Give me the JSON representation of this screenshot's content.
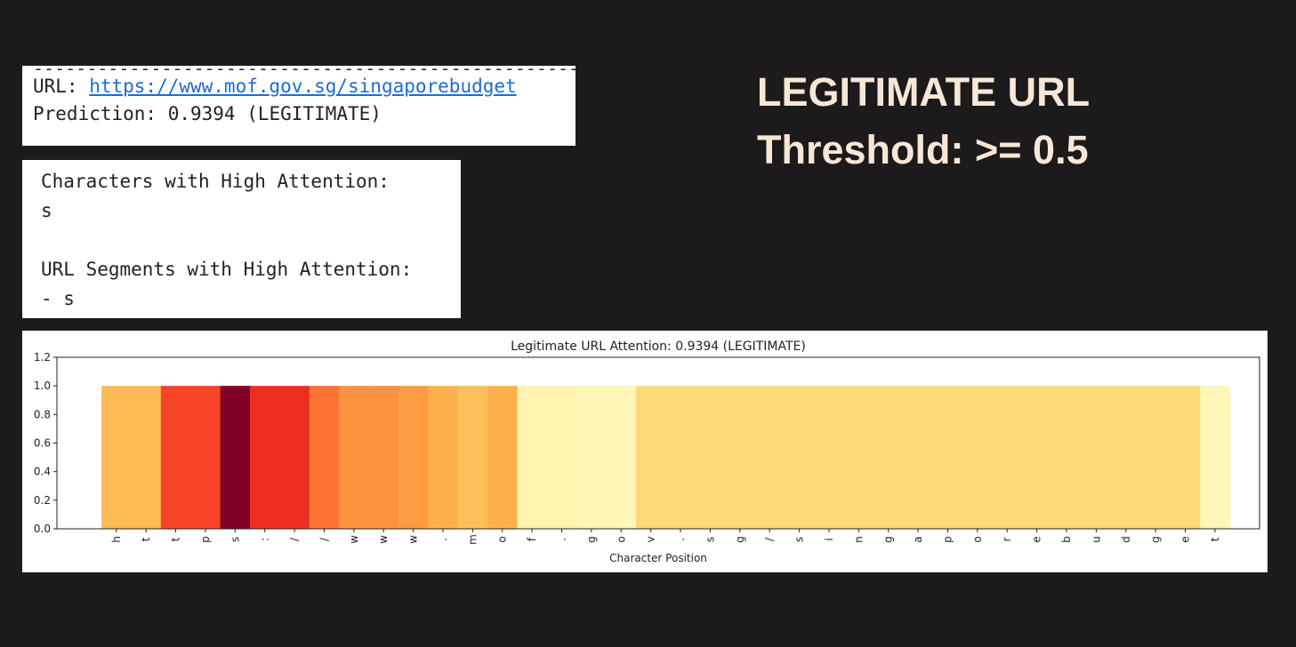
{
  "url_panel": {
    "dashes": "------------------------------------------------------------",
    "url_label": "URL: ",
    "url_link": "https://www.mof.gov.sg/singaporebudget",
    "prediction": "Prediction: 0.9394 (LEGITIMATE)"
  },
  "attention_panel": {
    "chars_heading": "Characters with High Attention:",
    "chars_value": "s",
    "segments_heading": "URL Segments with High Attention:",
    "segments_value": "- s"
  },
  "headline": {
    "line1": "LEGITIMATE URL",
    "line2": "Threshold: >= 0.5"
  },
  "colors": {
    "background": "#1c1a1b",
    "headline": "#f7e7d6",
    "link": "#1a6dd6"
  },
  "chart_data": {
    "type": "heatmap",
    "title": "Legitimate URL Attention: 0.9394 (LEGITIMATE)",
    "xlabel": "Character Position",
    "ylabel": "",
    "ylim": [
      0,
      1.2
    ],
    "yticks": [
      "0.0",
      "0.2",
      "0.4",
      "0.6",
      "0.8",
      "1.0",
      "1.2"
    ],
    "colormap": "YlOrRd",
    "grid": false,
    "categories": [
      "h",
      "t",
      "t",
      "p",
      "s",
      ":",
      "/",
      "/",
      "w",
      "w",
      "w",
      ".",
      "m",
      "o",
      "f",
      ".",
      "g",
      "o",
      "v",
      ".",
      "s",
      "g",
      "/",
      "s",
      "i",
      "n",
      "g",
      "a",
      "p",
      "o",
      "r",
      "e",
      "b",
      "u",
      "d",
      "g",
      "e",
      "t"
    ],
    "values": [
      1,
      1,
      1,
      1,
      1,
      1,
      1,
      1,
      1,
      1,
      1,
      1,
      1,
      1,
      1,
      1,
      1,
      1,
      1,
      1,
      1,
      1,
      1,
      1,
      1,
      1,
      1,
      1,
      1,
      1,
      1,
      1,
      1,
      1,
      1,
      1,
      1,
      1
    ],
    "attention": [
      0.35,
      0.35,
      0.65,
      0.65,
      1.0,
      0.7,
      0.7,
      0.55,
      0.48,
      0.48,
      0.45,
      0.38,
      0.33,
      0.38,
      0.08,
      0.08,
      0.06,
      0.06,
      0.25,
      0.25,
      0.25,
      0.25,
      0.25,
      0.25,
      0.25,
      0.25,
      0.25,
      0.25,
      0.25,
      0.25,
      0.25,
      0.25,
      0.25,
      0.25,
      0.25,
      0.25,
      0.25,
      0.06
    ]
  }
}
